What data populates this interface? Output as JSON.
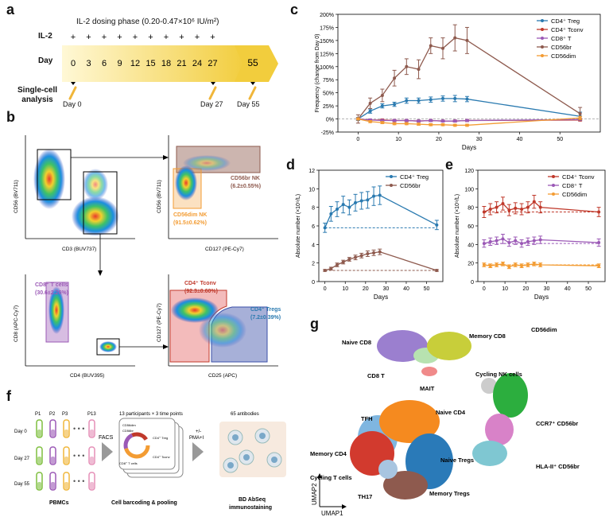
{
  "panels": {
    "a": {
      "label": "a",
      "title": "IL-2 dosing phase (0.20-0.47×10⁶ IU/m²)",
      "row_il2": "IL-2",
      "row_day": "Day",
      "row_sc": "Single-cell",
      "row_sc2": "analysis",
      "days": [
        "0",
        "3",
        "6",
        "9",
        "12",
        "15",
        "18",
        "21",
        "24",
        "27"
      ],
      "day_final": "55",
      "sample_days": [
        "Day 0",
        "Day 27",
        "Day 55"
      ],
      "plus": "+"
    },
    "b": {
      "label": "b",
      "plot1": {
        "xlabel": "CD3 (BUV737)",
        "ylabel": "CD56 (BV711)"
      },
      "plot2": {
        "xlabel": "CD127 (PE-Cy7)",
        "ylabel": "CD56 (BV711)",
        "gate_br": "CD56br NK",
        "gate_br_val": "(6.2±0.55%)",
        "gate_dim": "CD56dim NK",
        "gate_dim_val": "(91.5±0.62%)"
      },
      "plot3": {
        "xlabel": "CD4 (BUV395)",
        "ylabel": "CD8 (APC-Cy7)",
        "gate": "CD8⁺ T cells",
        "gate_val": "(30.6±2.26%)"
      },
      "plot4": {
        "xlabel": "CD25 (APC)",
        "ylabel": "CD127 (PE-Cy7)",
        "gate_tconv": "CD4⁺ Tconv",
        "gate_tconv_val": "(92.3±0.60%)",
        "gate_treg": "CD4⁺ Tregs",
        "gate_treg_val": "(7.2±0.39%)"
      }
    },
    "c": {
      "label": "c"
    },
    "d": {
      "label": "d"
    },
    "e": {
      "label": "e"
    },
    "f": {
      "label": "f",
      "participants": [
        "P1",
        "P2",
        "P3",
        "P13"
      ],
      "days": [
        "Day 0",
        "Day 27",
        "Day 55"
      ],
      "facs": "FACS",
      "barcode_title": "13 participants × 3 time points",
      "stim": "+/-",
      "stim2": "PMA+I",
      "antibodies": "65 antibodies",
      "caption_pbmc": "PBMCs",
      "caption_barcode": "Cell barcoding & pooling",
      "caption_abseq1": "BD AbSeq",
      "caption_abseq2": "immunostaining",
      "wheel_labels": [
        "CD56dim",
        "CD56br",
        "CD4⁺ Treg",
        "CD8⁺ T cells",
        "CD4⁺ Tconv"
      ]
    },
    "g": {
      "label": "g",
      "xlabel": "UMAP1",
      "ylabel": "UMAP2",
      "clusters": [
        "Naive CD8",
        "Memory CD8",
        "CD8 T",
        "MAIT",
        "CD56dim",
        "Cycling NK cells",
        "TFH",
        "Naive CD4",
        "Memory CD4",
        "Cycling T cells",
        "Naive Tregs",
        "TH17",
        "Memory Tregs",
        "CCR7⁺ CD56br",
        "HLA-II⁺ CD56br"
      ]
    }
  },
  "chart_data": [
    {
      "id": "c",
      "type": "line",
      "x": [
        0,
        3,
        6,
        9,
        12,
        15,
        18,
        21,
        24,
        27,
        55
      ],
      "xlabel": "Days",
      "ylabel": "Frequency (change from Day 0)",
      "xlim": [
        -5,
        60
      ],
      "ylim": [
        -25,
        200
      ],
      "yticks": [
        "-25%",
        "0%",
        "25%",
        "50%",
        "75%",
        "100%",
        "125%",
        "150%",
        "175%",
        "200%"
      ],
      "xticks": [
        "0",
        "10",
        "20",
        "30",
        "40",
        "50"
      ],
      "legend": "top-right",
      "series": [
        {
          "name": "CD4⁺ Treg",
          "color": "#2a7ab0",
          "values": [
            0,
            15,
            25,
            28,
            35,
            35,
            37,
            39,
            39,
            38,
            5
          ],
          "err": [
            3,
            4,
            4,
            4,
            5,
            5,
            5,
            5,
            6,
            5,
            8
          ]
        },
        {
          "name": "CD4⁺ Tconv",
          "color": "#c0392b",
          "values": [
            0,
            -2,
            -2,
            -3,
            -3,
            -4,
            -3,
            -4,
            -4,
            -3,
            -2
          ],
          "err": [
            2,
            2,
            2,
            2,
            2,
            2,
            2,
            2,
            2,
            2,
            2
          ]
        },
        {
          "name": "CD8⁺ T",
          "color": "#9b59b6",
          "values": [
            0,
            -2,
            -3,
            -3,
            -3,
            -4,
            -3,
            -4,
            -4,
            -3,
            -1
          ],
          "err": [
            2,
            2,
            2,
            2,
            2,
            2,
            2,
            2,
            2,
            2,
            2
          ]
        },
        {
          "name": "CD56br",
          "color": "#8e5a4e",
          "values": [
            0,
            30,
            45,
            78,
            100,
            95,
            140,
            135,
            155,
            150,
            10
          ],
          "err": [
            8,
            10,
            12,
            15,
            15,
            18,
            15,
            20,
            25,
            25,
            12
          ]
        },
        {
          "name": "CD56dim",
          "color": "#f39c33",
          "values": [
            0,
            -5,
            -7,
            -9,
            -9,
            -10,
            -11,
            -11,
            -12,
            -12,
            2
          ],
          "err": [
            2,
            2,
            2,
            2,
            2,
            2,
            2,
            2,
            2,
            2,
            3
          ]
        }
      ]
    },
    {
      "id": "d",
      "type": "line",
      "x": [
        0,
        3,
        6,
        9,
        12,
        15,
        18,
        21,
        24,
        27,
        55
      ],
      "xlabel": "Days",
      "ylabel": "Absolute number (×10⁹/L)",
      "xlim": [
        -3,
        58
      ],
      "ylim": [
        0,
        12
      ],
      "yticks": [
        "0",
        "2",
        "4",
        "6",
        "8",
        "10",
        "12"
      ],
      "xticks": [
        "0",
        "10",
        "20",
        "30",
        "40",
        "50"
      ],
      "legend": "top-right",
      "series": [
        {
          "name": "CD4⁺ Treg",
          "color": "#2a7ab0",
          "values": [
            5.8,
            7.3,
            7.8,
            8.3,
            8.0,
            8.5,
            8.7,
            8.8,
            9.2,
            9.3,
            6.1
          ],
          "err": [
            0.5,
            0.8,
            0.8,
            0.9,
            0.8,
            0.9,
            0.9,
            0.9,
            1.0,
            1.0,
            0.5
          ],
          "baseline": 5.8
        },
        {
          "name": "CD56br",
          "color": "#8e5a4e",
          "values": [
            1.2,
            1.4,
            1.8,
            2.1,
            2.4,
            2.6,
            2.8,
            3.0,
            3.1,
            3.2,
            1.2
          ],
          "err": [
            0.1,
            0.15,
            0.2,
            0.2,
            0.2,
            0.25,
            0.25,
            0.3,
            0.3,
            0.3,
            0.1
          ],
          "baseline": 1.2
        }
      ]
    },
    {
      "id": "e",
      "type": "line",
      "x": [
        0,
        3,
        6,
        9,
        12,
        15,
        18,
        21,
        24,
        27,
        55
      ],
      "xlabel": "Days",
      "ylabel": "Absolute number (×10⁹/L)",
      "xlim": [
        -3,
        58
      ],
      "ylim": [
        0,
        120
      ],
      "yticks": [
        "0",
        "20",
        "40",
        "60",
        "80",
        "100",
        "120"
      ],
      "xticks": [
        "0",
        "10",
        "20",
        "30",
        "40",
        "50"
      ],
      "legend": "top-right",
      "series": [
        {
          "name": "CD4⁺ Tconv",
          "color": "#c0392b",
          "values": [
            75,
            78,
            80,
            84,
            77,
            79,
            78,
            80,
            86,
            80,
            75
          ],
          "err": [
            6,
            6,
            6,
            7,
            6,
            6,
            6,
            6,
            7,
            6,
            5
          ],
          "baseline": 75
        },
        {
          "name": "CD8⁺ T",
          "color": "#9b59b6",
          "values": [
            41,
            43,
            44,
            46,
            42,
            44,
            41,
            43,
            44,
            45,
            42
          ],
          "err": [
            4,
            4,
            4,
            5,
            4,
            4,
            4,
            4,
            4,
            4,
            4
          ],
          "baseline": 41
        },
        {
          "name": "CD56dim",
          "color": "#f39c33",
          "values": [
            18,
            17,
            18,
            19,
            16,
            18,
            17,
            18,
            19,
            18,
            17
          ],
          "err": [
            2,
            2,
            2,
            2,
            2,
            2,
            2,
            2,
            2,
            2,
            2
          ],
          "baseline": 18
        }
      ]
    }
  ]
}
